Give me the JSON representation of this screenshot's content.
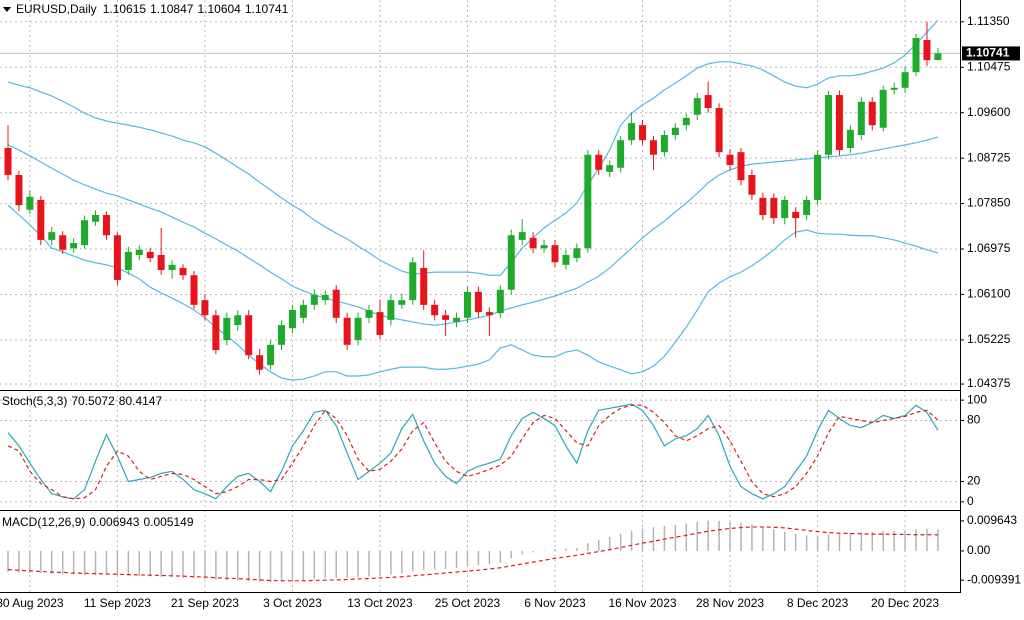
{
  "chart_data": [
    {
      "type": "candlestick",
      "title": "EURUSD,Daily",
      "categories": [
        null,
        null,
        "30 Aug 2023",
        null,
        null,
        null,
        null,
        null,
        null,
        null,
        "11 Sep 2023",
        null,
        null,
        null,
        null,
        null,
        null,
        null,
        "21 Sep 2023",
        null,
        null,
        null,
        null,
        null,
        null,
        null,
        "3 Oct 2023",
        null,
        null,
        null,
        null,
        null,
        null,
        null,
        "13 Oct 2023",
        null,
        null,
        null,
        null,
        null,
        null,
        null,
        "25 Oct 2023",
        null,
        null,
        null,
        null,
        null,
        null,
        null,
        "6 Nov 2023",
        null,
        null,
        null,
        null,
        null,
        null,
        null,
        "16 Nov 2023",
        null,
        null,
        null,
        null,
        null,
        null,
        null,
        "28 Nov 2023",
        null,
        null,
        null,
        null,
        null,
        null,
        null,
        "8 Dec 2023",
        null,
        null,
        null,
        null,
        null,
        null,
        null,
        "20 Dec 2023",
        null,
        null,
        null
      ],
      "open": [
        1.0892,
        1.084,
        1.0773,
        1.0792,
        1.0715,
        1.0724,
        1.0699,
        1.0705,
        1.075,
        1.0763,
        1.0724,
        1.0657,
        1.0686,
        1.0692,
        1.0686,
        1.0657,
        1.0661,
        1.0647,
        1.0599,
        1.057,
        1.0522,
        1.0551,
        1.057,
        1.0493,
        1.0474,
        1.0513,
        1.0545,
        1.0565,
        1.059,
        1.0599,
        1.0619,
        1.0565,
        1.0522,
        1.0565,
        1.0576,
        1.0561,
        1.059,
        1.0599,
        1.0661,
        1.059,
        1.057,
        1.0557,
        1.0565,
        1.0615,
        1.0576,
        1.0574,
        1.0619,
        1.0715,
        1.0719,
        1.0699,
        1.0705,
        1.0667,
        1.068,
        1.0699,
        1.0879,
        1.0846,
        1.0854,
        1.0907,
        1.0936,
        1.0907,
        1.0884,
        1.0917,
        1.0936,
        1.0956,
        1.0994,
        1.0969,
        1.0879,
        1.0884,
        1.084,
        1.0796,
        1.0796,
        1.0757,
        1.0769,
        1.0763,
        1.0792,
        1.0879,
        1.0994,
        1.0892,
        1.0917,
        1.0981,
        1.0931,
        1.1004,
        1.1008,
        1.1038,
        1.11,
        1.10615
      ],
      "high": [
        1.0936,
        1.0848,
        1.081,
        1.08,
        1.074,
        1.0732,
        1.0718,
        1.0762,
        1.0772,
        1.077,
        1.073,
        1.0702,
        1.0705,
        1.07,
        1.0738,
        1.0676,
        1.0668,
        1.0655,
        1.061,
        1.058,
        1.0575,
        1.058,
        1.058,
        1.0505,
        1.0522,
        1.056,
        1.059,
        1.06,
        1.062,
        1.0618,
        1.0628,
        1.0575,
        1.0575,
        1.059,
        1.06,
        1.061,
        1.0612,
        1.0682,
        1.0695,
        1.06,
        1.058,
        1.0575,
        1.0625,
        1.0625,
        1.0585,
        1.0628,
        1.0735,
        1.0755,
        1.073,
        1.0715,
        1.0715,
        1.0696,
        1.0708,
        1.0888,
        1.0888,
        1.0868,
        1.0915,
        1.096,
        1.0946,
        1.0915,
        1.0926,
        1.094,
        1.0958,
        1.0998,
        1.102,
        1.0978,
        1.089,
        1.0892,
        1.085,
        1.0806,
        1.0805,
        1.08,
        1.0778,
        1.08,
        1.0888,
        1.1002,
        1.1003,
        1.0936,
        1.099,
        1.099,
        1.1012,
        1.1018,
        1.1048,
        1.1112,
        1.1135,
        1.10847
      ],
      "low": [
        1.083,
        1.077,
        1.0765,
        1.0705,
        1.0705,
        1.0688,
        1.069,
        1.0698,
        1.0742,
        1.0715,
        1.0628,
        1.0648,
        1.0676,
        1.0672,
        1.0648,
        1.064,
        1.0638,
        1.0582,
        1.056,
        1.0495,
        1.0512,
        1.054,
        1.0485,
        1.0455,
        1.0465,
        1.0503,
        1.0535,
        1.0555,
        1.058,
        1.059,
        1.0555,
        1.0503,
        1.0512,
        1.0555,
        1.0524,
        1.055,
        1.0582,
        1.059,
        1.058,
        1.056,
        1.053,
        1.0547,
        1.0555,
        1.0565,
        1.053,
        1.0565,
        1.061,
        1.0705,
        1.069,
        1.069,
        1.0662,
        1.0658,
        1.0672,
        1.069,
        1.084,
        1.0836,
        1.0845,
        1.0898,
        1.0898,
        1.085,
        1.0875,
        1.0908,
        1.0926,
        1.0946,
        1.096,
        1.0874,
        1.0849,
        1.082,
        1.0792,
        1.0753,
        1.0746,
        1.0745,
        1.072,
        1.0753,
        1.0783,
        1.087,
        1.0878,
        1.0882,
        1.0908,
        1.0926,
        1.0924,
        1.0995,
        1.0998,
        1.103,
        1.105,
        1.10604
      ],
      "close": [
        1.084,
        1.0782,
        1.0798,
        1.0715,
        1.073,
        1.0696,
        1.0709,
        1.0753,
        1.0763,
        1.0724,
        1.0638,
        1.0692,
        1.0696,
        1.068,
        1.0657,
        1.0667,
        1.0647,
        1.059,
        1.057,
        1.0503,
        1.0565,
        1.057,
        1.0493,
        1.0465,
        1.0513,
        1.0551,
        1.058,
        1.059,
        1.0609,
        1.0609,
        1.0565,
        1.0513,
        1.0565,
        1.058,
        1.0532,
        1.0599,
        1.0599,
        1.0672,
        1.059,
        1.057,
        1.0561,
        1.0565,
        1.0615,
        1.0576,
        1.057,
        1.0619,
        1.0724,
        1.073,
        1.0699,
        1.0705,
        1.0672,
        1.0686,
        1.0699,
        1.0879,
        1.085,
        1.0859,
        1.0907,
        1.094,
        1.0907,
        1.0879,
        1.0917,
        1.0931,
        1.095,
        1.0988,
        1.0969,
        1.0884,
        1.0859,
        1.083,
        1.0802,
        1.0763,
        1.0757,
        1.0792,
        1.0757,
        1.0792,
        1.0879,
        1.0994,
        1.0888,
        1.0927,
        1.0981,
        1.0936,
        1.1004,
        1.1008,
        1.1038,
        1.1104,
        1.1061,
        1.10741
      ],
      "up_color": "#1faa2c",
      "down_color": "#e8141c",
      "bands": {
        "color": "#55b9e0",
        "upper": [
          1.1019,
          1.1013,
          1.1008,
          1.1,
          1.0992,
          1.0982,
          1.0971,
          1.0959,
          1.095,
          1.0944,
          1.094,
          1.0936,
          1.0932,
          1.0927,
          1.0921,
          1.0915,
          1.0907,
          1.0902,
          1.0894,
          1.0882,
          1.0869,
          1.0855,
          1.0842,
          1.0826,
          1.0811,
          1.0796,
          1.0782,
          1.0769,
          1.0753,
          1.074,
          1.0728,
          1.0717,
          1.0703,
          1.069,
          1.0676,
          1.0665,
          1.0655,
          1.0649,
          1.0651,
          1.0653,
          1.0653,
          1.0653,
          1.0653,
          1.0651,
          1.0647,
          1.0647,
          1.0672,
          1.0699,
          1.0719,
          1.0738,
          1.0753,
          1.0767,
          1.0786,
          1.0821,
          1.0853,
          1.0888,
          1.0936,
          1.0959,
          1.0975,
          1.0988,
          1.1004,
          1.1017,
          1.1031,
          1.1046,
          1.1054,
          1.1058,
          1.1058,
          1.1054,
          1.105,
          1.1042,
          1.1031,
          1.1019,
          1.1011,
          1.1008,
          1.1015,
          1.1027,
          1.1031,
          1.1031,
          1.1034,
          1.104,
          1.1046,
          1.1056,
          1.1071,
          1.1092,
          1.1115,
          1.1138
        ],
        "middle": [
          1.0898,
          1.0888,
          1.0877,
          1.0865,
          1.0853,
          1.0842,
          1.083,
          1.0821,
          1.0813,
          1.0805,
          1.08,
          1.0792,
          1.0784,
          1.0776,
          1.0769,
          1.0759,
          1.0749,
          1.074,
          1.0728,
          1.0717,
          1.0705,
          1.0694,
          1.068,
          1.0667,
          1.0653,
          1.064,
          1.0626,
          1.0617,
          1.0609,
          1.0603,
          1.0597,
          1.0592,
          1.0586,
          1.0578,
          1.057,
          1.0565,
          1.0561,
          1.0557,
          1.0553,
          1.0551,
          1.0553,
          1.0557,
          1.0561,
          1.0565,
          1.057,
          1.0578,
          1.0584,
          1.059,
          1.0595,
          1.0601,
          1.0607,
          1.0615,
          1.0622,
          1.0634,
          1.0645,
          1.0661,
          1.068,
          1.0699,
          1.0719,
          1.0736,
          1.0751,
          1.0769,
          1.0786,
          1.0805,
          1.0825,
          1.084,
          1.085,
          1.0857,
          1.0861,
          1.0863,
          1.0865,
          1.0867,
          1.0869,
          1.0871,
          1.0873,
          1.0875,
          1.0877,
          1.0879,
          1.0882,
          1.0886,
          1.089,
          1.0894,
          1.0898,
          1.0902,
          1.0907,
          1.0913
        ],
        "lower": [
          1.0782,
          1.0763,
          1.0744,
          1.0723,
          1.0699,
          1.0692,
          1.0684,
          1.0676,
          1.0671,
          1.0667,
          1.0661,
          1.0651,
          1.064,
          1.0624,
          1.0613,
          1.0603,
          1.0592,
          1.058,
          1.0565,
          1.0547,
          1.053,
          1.0513,
          1.0493,
          1.0476,
          1.0461,
          1.0449,
          1.0445,
          1.0447,
          1.0453,
          1.0461,
          1.0461,
          1.0453,
          1.0453,
          1.0455,
          1.0461,
          1.0466,
          1.047,
          1.047,
          1.047,
          1.0466,
          1.0466,
          1.0468,
          1.0472,
          1.0476,
          1.0484,
          1.0507,
          1.0513,
          1.0503,
          1.0493,
          1.049,
          1.049,
          1.0499,
          1.0503,
          1.0493,
          1.048,
          1.0472,
          1.0465,
          1.0457,
          1.0461,
          1.0472,
          1.0491,
          1.0518,
          1.0547,
          1.058,
          1.0615,
          1.0632,
          1.0644,
          1.0653,
          1.0665,
          1.068,
          1.0696,
          1.0715,
          1.073,
          1.0734,
          1.0728,
          1.0726,
          1.0726,
          1.0724,
          1.0723,
          1.0723,
          1.0719,
          1.0715,
          1.0709,
          1.0703,
          1.0696,
          1.069
        ]
      },
      "ylim": [
        1.0426,
        1.1177
      ],
      "yticks": [
        {
          "value": 1.1135,
          "label": "1.11350"
        },
        1.10475,
        {
          "value": 1.096,
          "label": "1.09600"
        },
        1.08725,
        {
          "value": 1.0785,
          "label": "1.07850"
        },
        1.06975,
        {
          "value": 1.061,
          "label": "1.06100"
        },
        1.05225,
        1.04375
      ],
      "grid": true
    },
    {
      "type": "stochastic",
      "title": "Stoch(5,3,3)",
      "main": {
        "color": "#2aa7b8",
        "values": [
          68,
          55,
          38,
          22,
          8,
          5,
          3,
          12,
          40,
          66,
          45,
          20,
          22,
          24,
          28,
          30,
          22,
          12,
          8,
          3,
          15,
          25,
          28,
          20,
          10,
          30,
          55,
          70,
          88,
          90,
          75,
          48,
          22,
          30,
          38,
          48,
          72,
          86,
          60,
          38,
          25,
          18,
          30,
          35,
          38,
          42,
          65,
          82,
          88,
          82,
          75,
          55,
          38,
          70,
          90,
          92,
          94,
          96,
          90,
          75,
          55,
          62,
          65,
          72,
          85,
          65,
          35,
          15,
          8,
          3,
          8,
          15,
          30,
          45,
          70,
          90,
          82,
          75,
          73,
          78,
          85,
          82,
          85,
          95,
          88,
          70.5072
        ]
      },
      "signal": {
        "color": "#d42020",
        "values": [
          55,
          50,
          30,
          18,
          12,
          5,
          3,
          4,
          12,
          35,
          50,
          45,
          30,
          22,
          25,
          28,
          27,
          22,
          15,
          8,
          10,
          15,
          22,
          22,
          20,
          22,
          38,
          55,
          75,
          90,
          82,
          65,
          42,
          30,
          32,
          40,
          52,
          70,
          78,
          58,
          40,
          30,
          25,
          28,
          32,
          36,
          45,
          62,
          78,
          85,
          82,
          70,
          58,
          55,
          75,
          85,
          92,
          95,
          95,
          88,
          78,
          65,
          60,
          65,
          72,
          75,
          60,
          40,
          20,
          8,
          5,
          8,
          15,
          28,
          45,
          68,
          84,
          82,
          80,
          78,
          80,
          82,
          84,
          88,
          90,
          80.4147
        ]
      },
      "ylim": [
        -8,
        108
      ],
      "yticks": [
        100,
        80,
        20,
        0
      ],
      "grid": true
    },
    {
      "type": "macd",
      "title": "MACD(12,26,9)",
      "histogram": {
        "color": "#b4b4b4",
        "values": [
          -0.0067,
          -0.0068,
          -0.007,
          -0.0072,
          -0.0074,
          -0.0075,
          -0.0076,
          -0.0077,
          -0.0077,
          -0.0077,
          -0.0078,
          -0.008,
          -0.0081,
          -0.0082,
          -0.0083,
          -0.0084,
          -0.0086,
          -0.0088,
          -0.009,
          -0.0093,
          -0.0094,
          -0.0095,
          -0.0097,
          -0.0099,
          -0.01,
          -0.0098,
          -0.0096,
          -0.0094,
          -0.0091,
          -0.0088,
          -0.0087,
          -0.0087,
          -0.0085,
          -0.0082,
          -0.008,
          -0.0076,
          -0.0072,
          -0.0065,
          -0.0062,
          -0.006,
          -0.0058,
          -0.0055,
          -0.005,
          -0.0046,
          -0.0043,
          -0.0038,
          -0.0025,
          -0.0012,
          -0.0005,
          0.0002,
          0.0006,
          0.0008,
          0.001,
          0.0025,
          0.0035,
          0.0045,
          0.0055,
          0.0065,
          0.0072,
          0.0076,
          0.008,
          0.0084,
          0.0088,
          0.0093,
          0.0097,
          0.0096,
          0.0093,
          0.009,
          0.0085,
          0.0078,
          0.007,
          0.0062,
          0.0055,
          0.005,
          0.0048,
          0.0052,
          0.0055,
          0.0058,
          0.006,
          0.0061,
          0.0063,
          0.0064,
          0.0066,
          0.0069,
          0.0071,
          0.006943
        ]
      },
      "signal": {
        "color": "#d42020",
        "values": [
          -0.006,
          -0.0062,
          -0.0064,
          -0.0066,
          -0.0068,
          -0.0069,
          -0.0071,
          -0.0072,
          -0.0073,
          -0.0074,
          -0.0075,
          -0.0076,
          -0.0077,
          -0.0078,
          -0.0079,
          -0.008,
          -0.0081,
          -0.0083,
          -0.0084,
          -0.0086,
          -0.0088,
          -0.0089,
          -0.0091,
          -0.0093,
          -0.0095,
          -0.0096,
          -0.0096,
          -0.0096,
          -0.0095,
          -0.0094,
          -0.0093,
          -0.0092,
          -0.009,
          -0.0089,
          -0.0087,
          -0.0085,
          -0.0083,
          -0.008,
          -0.0077,
          -0.0074,
          -0.0071,
          -0.0068,
          -0.0065,
          -0.0062,
          -0.0058,
          -0.0054,
          -0.0048,
          -0.0042,
          -0.0036,
          -0.003,
          -0.0024,
          -0.0019,
          -0.0014,
          -0.0008,
          -0.0002,
          0.0004,
          0.0011,
          0.0018,
          0.0025,
          0.0031,
          0.0038,
          0.0044,
          0.005,
          0.0057,
          0.0063,
          0.0068,
          0.0072,
          0.0075,
          0.0077,
          0.0077,
          0.0076,
          0.0074,
          0.007,
          0.0066,
          0.0062,
          0.0059,
          0.0057,
          0.0056,
          0.0055,
          0.0054,
          0.0054,
          0.0053,
          0.0053,
          0.0052,
          0.0052,
          0.005149
        ]
      },
      "ylim": [
        -0.0132,
        0.0125
      ],
      "yticks": [
        0.009643,
        {
          "value": 0,
          "label": "0.00"
        },
        -0.009391
      ],
      "grid": false
    }
  ]
}
